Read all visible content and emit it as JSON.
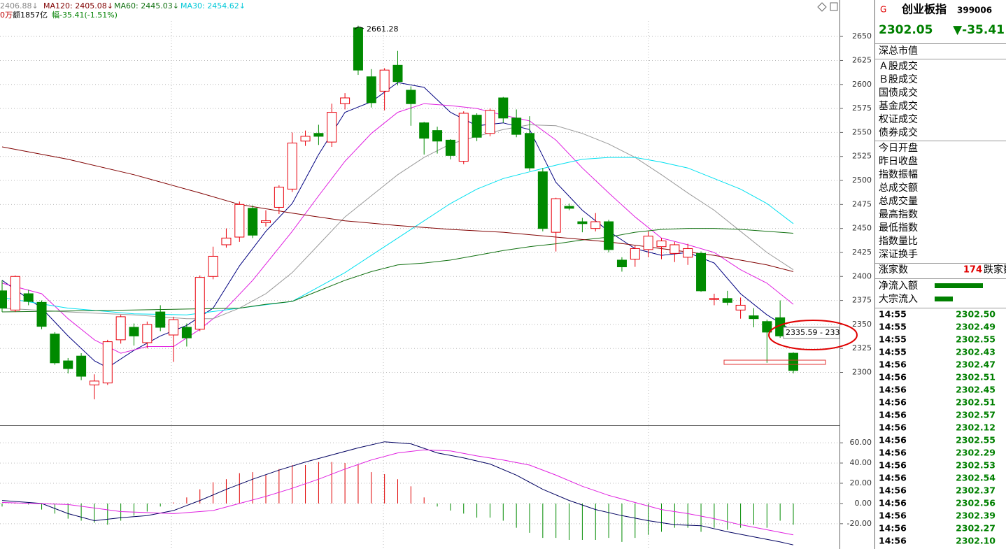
{
  "chart_data": [
    {
      "type": "candlestick",
      "up_color": "#e8000b",
      "down_color": "#008a00",
      "open": [
        2385,
        2365,
        2382,
        2373,
        2340,
        2312,
        2317,
        2287,
        2289,
        2334,
        2347,
        2331,
        2363,
        2339,
        2347,
        2345,
        2400,
        2433,
        2441,
        2471,
        2456,
        2472,
        2491,
        2541,
        2549,
        2540,
        2580,
        2659,
        2608,
        2593,
        2620,
        2594,
        2560,
        2552,
        2542,
        2520,
        2568,
        2549,
        2586,
        2565,
        2549,
        2509,
        2446,
        2473,
        2457,
        2450,
        2457,
        2417,
        2418,
        2428,
        2431,
        2424,
        2420,
        2424,
        2376,
        2377,
        2365,
        2359,
        2353,
        2357,
        2320
      ],
      "high": [
        2396,
        2401,
        2386,
        2375,
        2342,
        2315,
        2320,
        2298,
        2334,
        2360,
        2351,
        2353,
        2370,
        2358,
        2351,
        2401,
        2431,
        2450,
        2478,
        2474,
        2469,
        2495,
        2550,
        2552,
        2558,
        2580,
        2591,
        2661.28,
        2616,
        2617,
        2635,
        2598,
        2561,
        2556,
        2543,
        2572,
        2570,
        2575,
        2587,
        2574,
        2567,
        2513,
        2482,
        2476,
        2461,
        2466,
        2459,
        2420,
        2432,
        2447,
        2440,
        2436,
        2434,
        2426,
        2382,
        2385,
        2378,
        2367,
        2355,
        2375,
        2321
      ],
      "low": [
        2363,
        2363,
        2370,
        2345,
        2308,
        2299,
        2292,
        2272,
        2287,
        2330,
        2328,
        2325,
        2343,
        2311,
        2327,
        2343,
        2397,
        2430,
        2436,
        2440,
        2452,
        2465,
        2488,
        2536,
        2537,
        2535,
        2574,
        2610,
        2576,
        2573,
        2599,
        2557,
        2527,
        2528,
        2522,
        2517,
        2541,
        2546,
        2560,
        2545,
        2510,
        2447,
        2426,
        2469,
        2446,
        2447,
        2425,
        2405,
        2410,
        2420,
        2418,
        2415,
        2412,
        2384,
        2370,
        2370,
        2356,
        2347,
        2310,
        2336,
        2299
      ],
      "close": [
        2367,
        2400,
        2374,
        2348,
        2310,
        2304,
        2296,
        2291,
        2332,
        2358,
        2338,
        2350,
        2347,
        2355,
        2336,
        2399,
        2421,
        2440,
        2475,
        2443,
        2458,
        2493,
        2539,
        2546,
        2546,
        2571,
        2586,
        2615,
        2581,
        2615,
        2603,
        2580,
        2544,
        2541,
        2526,
        2570,
        2545,
        2573,
        2565,
        2548,
        2513,
        2450,
        2481,
        2471,
        2455,
        2457,
        2428,
        2410,
        2429,
        2442,
        2437,
        2433,
        2429,
        2385,
        2377,
        2373,
        2370,
        2356,
        2342,
        2338,
        2302.05
      ],
      "lines": [
        {
          "color": "#000080",
          "x": [
            0,
            3,
            5,
            7,
            8,
            10,
            12,
            14,
            16,
            18,
            20,
            22,
            24,
            26,
            28,
            30,
            32,
            34,
            36,
            38,
            40,
            42,
            44,
            46,
            48,
            50,
            52,
            54,
            56,
            58,
            60
          ],
          "values": [
            2396,
            2367,
            2338,
            2312,
            2305,
            2323,
            2338,
            2349,
            2367,
            2411,
            2447,
            2476,
            2527,
            2571,
            2582,
            2602,
            2597,
            2571,
            2557,
            2560,
            2553,
            2498,
            2469,
            2447,
            2429,
            2422,
            2425,
            2414,
            2382,
            2360,
            2343
          ]
        },
        {
          "color": "#e020e0",
          "x": [
            0,
            3,
            5,
            7,
            9,
            11,
            13,
            15,
            17,
            19,
            22,
            24,
            26,
            28,
            30,
            32,
            34,
            36,
            38,
            40,
            42,
            44,
            46,
            48,
            50,
            52,
            54,
            56,
            58,
            60
          ],
          "values": [
            2393,
            2382,
            2356,
            2334,
            2320,
            2327,
            2327,
            2345,
            2367,
            2396,
            2447,
            2484,
            2520,
            2549,
            2571,
            2580,
            2578,
            2575,
            2568,
            2562,
            2542,
            2513,
            2487,
            2462,
            2440,
            2433,
            2425,
            2407,
            2393,
            2371
          ]
        },
        {
          "color": "#999999",
          "x": [
            0,
            5,
            10,
            14,
            16,
            18,
            20,
            22,
            24,
            26,
            28,
            30,
            32,
            34,
            36,
            38,
            40,
            42,
            44,
            46,
            48,
            50,
            52,
            54,
            56,
            58,
            60
          ],
          "values": [
            2367,
            2363,
            2360,
            2356,
            2356,
            2367,
            2382,
            2404,
            2433,
            2462,
            2484,
            2506,
            2524,
            2538,
            2546,
            2553,
            2558,
            2557,
            2549,
            2538,
            2524,
            2506,
            2487,
            2469,
            2447,
            2425,
            2407
          ]
        },
        {
          "color": "#00e0f0",
          "x": [
            0,
            5,
            10,
            14,
            18,
            22,
            24,
            26,
            28,
            30,
            32,
            34,
            36,
            38,
            40,
            42,
            44,
            46,
            48,
            50,
            52,
            54,
            56,
            58,
            60
          ],
          "values": [
            2378,
            2367,
            2361,
            2360,
            2367,
            2374,
            2389,
            2404,
            2422,
            2440,
            2458,
            2476,
            2491,
            2502,
            2509,
            2516,
            2522,
            2524,
            2524,
            2519,
            2513,
            2502,
            2491,
            2476,
            2455
          ]
        },
        {
          "color": "#107010",
          "x": [
            0,
            10,
            14,
            18,
            20,
            22,
            24,
            26,
            28,
            30,
            32,
            34,
            36,
            38,
            40,
            42,
            44,
            46,
            48,
            50,
            52,
            54,
            56,
            58,
            60
          ],
          "values": [
            2363,
            2365,
            2366,
            2367,
            2371,
            2374,
            2385,
            2396,
            2405,
            2412,
            2414,
            2417,
            2422,
            2427,
            2431,
            2434,
            2438,
            2441,
            2446,
            2449,
            2450,
            2450,
            2449,
            2447,
            2445
          ]
        },
        {
          "color": "#800000",
          "x": [
            0,
            5,
            10,
            15,
            18,
            22,
            26,
            30,
            34,
            38,
            42,
            46,
            50,
            54,
            58,
            60
          ],
          "values": [
            2535,
            2522,
            2506,
            2487,
            2475,
            2466,
            2458,
            2453,
            2449,
            2446,
            2441,
            2436,
            2429,
            2422,
            2412,
            2405
          ]
        }
      ],
      "ylim": [
        2245,
        2688
      ],
      "yticks": [
        2650,
        2625,
        2600,
        2575,
        2550,
        2525,
        2500,
        2475,
        2450,
        2425,
        2400,
        2375,
        2350,
        2325,
        2300
      ],
      "grid": true,
      "annotations": [
        "2661.28",
        "2335.59 - 233"
      ]
    },
    {
      "type": "macd",
      "up_color": "#e00000",
      "down_color": "#008a00",
      "values": [
        -3,
        1,
        -1,
        -6,
        -10,
        -15,
        -17,
        -19,
        -21,
        -17,
        -12,
        -8,
        -3,
        1,
        6,
        14,
        21,
        24,
        30,
        31,
        28,
        34,
        38,
        38,
        41,
        41,
        40,
        39,
        31,
        29,
        24,
        17,
        6,
        -3,
        -7,
        -10,
        -14,
        -14,
        -17,
        -24,
        -29,
        -34,
        -34,
        -36,
        -36,
        -36,
        -34,
        -38,
        -34,
        -31,
        -28,
        -24,
        -24,
        -28,
        -24,
        -26,
        -24,
        -21,
        -24,
        -17,
        -21
      ],
      "lines": [
        {
          "color": "#000060",
          "x": [
            0,
            3,
            5,
            7,
            9,
            11,
            13,
            15,
            17,
            19,
            21,
            23,
            25,
            27,
            29,
            31,
            33,
            35,
            37,
            39,
            41,
            43,
            45,
            47,
            49,
            51,
            53,
            55,
            57,
            59,
            60
          ],
          "values": [
            3,
            0,
            -10,
            -17,
            -14,
            -12,
            -7,
            3,
            14,
            24,
            33,
            41,
            48,
            55,
            61,
            59,
            50,
            45,
            39,
            28,
            14,
            3,
            -6,
            -12,
            -17,
            -21,
            -22,
            -28,
            -33,
            -38,
            -41
          ]
        },
        {
          "color": "#e020e0",
          "x": [
            0,
            5,
            9,
            13,
            16,
            18,
            20,
            22,
            24,
            26,
            28,
            30,
            32,
            34,
            36,
            38,
            40,
            42,
            44,
            46,
            48,
            50,
            52,
            54,
            56,
            58,
            60
          ],
          "values": [
            1,
            -1,
            -8,
            -10,
            -7,
            0,
            7,
            15,
            24,
            34,
            43,
            50,
            53,
            52,
            47,
            43,
            38,
            28,
            17,
            8,
            1,
            -6,
            -10,
            -15,
            -21,
            -26,
            -31
          ]
        }
      ],
      "ylim": [
        -45,
        76
      ],
      "yticks": [
        {
          "value": 60,
          "label": "60.00"
        },
        {
          "value": 40,
          "label": "40.00"
        },
        {
          "value": 20,
          "label": "20.00"
        },
        {
          "value": 0,
          "label": "0.00"
        },
        {
          "value": -20,
          "label": "-20.00"
        }
      ]
    }
  ],
  "header": {
    "line1": [
      "2406.88↓",
      "MA120: 2405.08↓",
      "MA60: 2445.03↓",
      "MA30: 2454.62↓"
    ],
    "line2": [
      "0万",
      "额1857亿",
      "幅-35.41(-1.51%)"
    ]
  },
  "quote_panel": {
    "badge": "G",
    "name": "创业板指",
    "code": "399006",
    "price": 2302.05,
    "change": "▼-35.41",
    "section1": [
      "深总市值"
    ],
    "section2": [
      "Ａ股成交",
      "Ｂ股成交",
      "国债成交",
      "基金成交",
      "权证成交",
      "债券成交"
    ],
    "section3": [
      "今日开盘",
      "昨日收盘",
      "指数振幅",
      "总成交额",
      "总成交量",
      "最高指数",
      "最低指数",
      "指数量比",
      "深证换手"
    ],
    "breadth": {
      "up_label": "涨家数",
      "up_count": 174,
      "down_label": "跌家数"
    },
    "flows": [
      "净流入额",
      "大宗流入"
    ],
    "ticks": [
      {
        "time": "14:55",
        "price": "2302.50"
      },
      {
        "time": "14:55",
        "price": "2302.49"
      },
      {
        "time": "14:55",
        "price": "2302.55"
      },
      {
        "time": "14:55",
        "price": "2302.43"
      },
      {
        "time": "14:56",
        "price": "2302.47"
      },
      {
        "time": "14:56",
        "price": "2302.51"
      },
      {
        "time": "14:56",
        "price": "2302.45"
      },
      {
        "time": "14:56",
        "price": "2302.51"
      },
      {
        "time": "14:56",
        "price": "2302.57"
      },
      {
        "time": "14:56",
        "price": "2302.12"
      },
      {
        "time": "14:56",
        "price": "2302.55"
      },
      {
        "time": "14:56",
        "price": "2302.29"
      },
      {
        "time": "14:56",
        "price": "2302.53"
      },
      {
        "time": "14:56",
        "price": "2302.54"
      },
      {
        "time": "14:56",
        "price": "2302.37"
      },
      {
        "time": "14:56",
        "price": "2302.56"
      },
      {
        "time": "14:56",
        "price": "2302.39"
      },
      {
        "time": "14:56",
        "price": "2302.27"
      },
      {
        "time": "14:56",
        "price": "2302.10"
      }
    ]
  }
}
